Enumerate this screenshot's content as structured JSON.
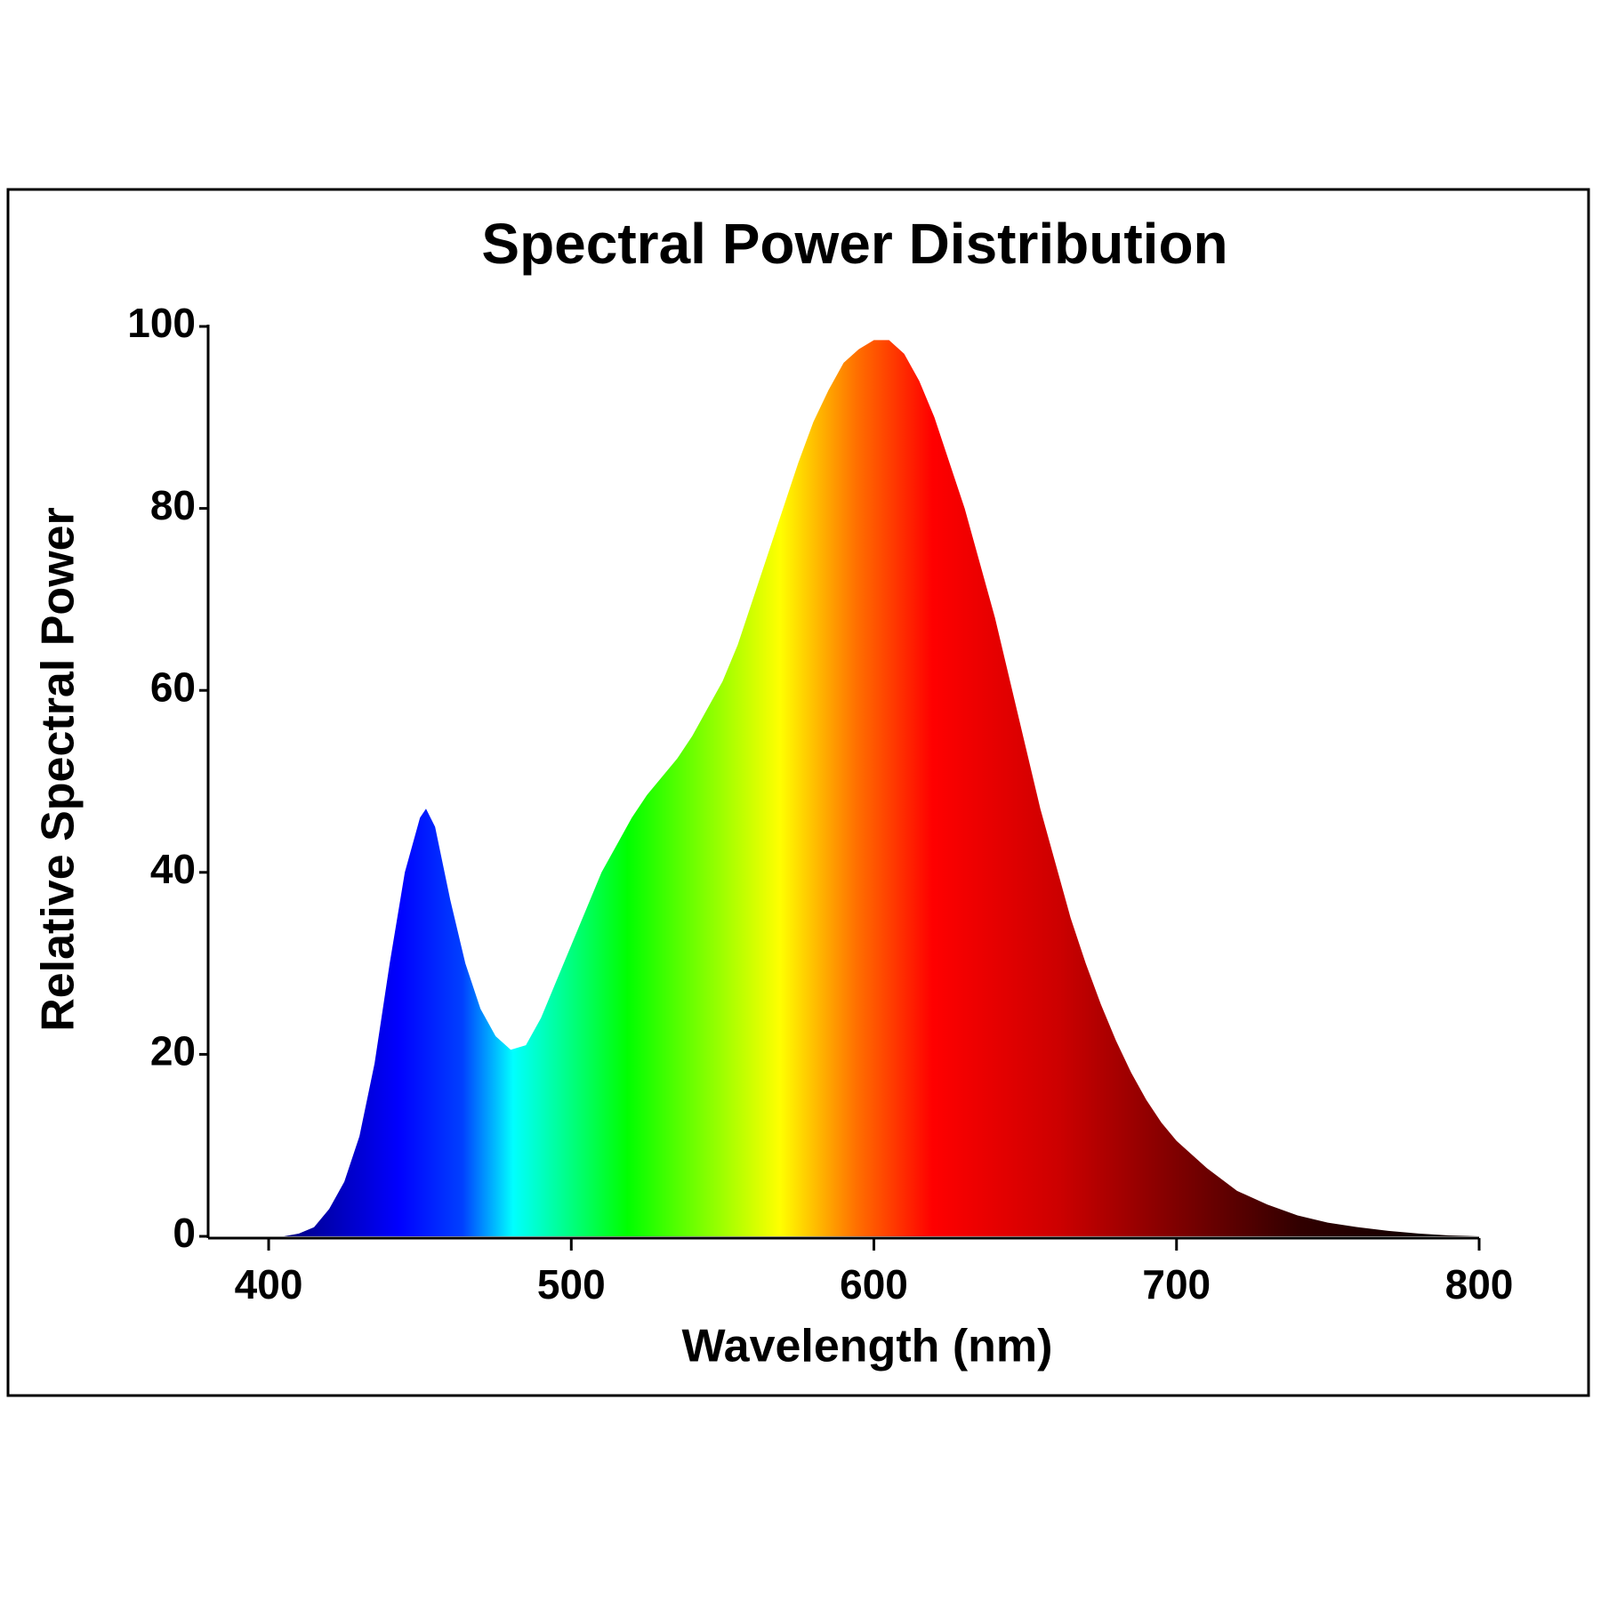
{
  "chart_data": {
    "type": "area",
    "title": "Spectral Power Distribution",
    "xlabel": "Wavelength (nm)",
    "ylabel": "Relative Spectral Power",
    "x": [
      380,
      390,
      400,
      405,
      410,
      415,
      420,
      425,
      430,
      435,
      440,
      445,
      450,
      452,
      455,
      460,
      465,
      470,
      475,
      480,
      485,
      490,
      495,
      500,
      505,
      510,
      515,
      520,
      525,
      530,
      535,
      540,
      545,
      550,
      555,
      560,
      565,
      570,
      575,
      580,
      585,
      590,
      595,
      600,
      605,
      610,
      615,
      620,
      625,
      630,
      635,
      640,
      645,
      650,
      655,
      660,
      665,
      670,
      675,
      680,
      685,
      690,
      695,
      700,
      710,
      720,
      730,
      740,
      750,
      760,
      770,
      780,
      790,
      800
    ],
    "values": [
      0,
      0,
      0,
      0,
      0.3,
      1,
      3,
      6,
      11,
      19,
      30,
      40,
      46,
      47,
      45,
      37,
      30,
      25,
      22,
      20.5,
      21,
      24,
      28,
      32,
      36,
      40,
      43,
      46,
      48.5,
      50.5,
      52.5,
      55,
      58,
      61,
      65,
      70,
      75,
      80,
      85,
      89.5,
      93,
      96,
      97.5,
      98.5,
      98.5,
      97,
      94,
      90,
      85,
      80,
      74,
      68,
      61,
      54,
      47,
      41,
      35,
      30,
      25.5,
      21.5,
      18,
      15,
      12.5,
      10.5,
      7.5,
      5,
      3.5,
      2.3,
      1.5,
      1,
      0.6,
      0.3,
      0.1,
      0
    ],
    "xlim": [
      380,
      800
    ],
    "ylim": [
      0,
      100
    ],
    "xticks": [
      400,
      500,
      600,
      700,
      800
    ],
    "yticks": [
      0,
      20,
      40,
      60,
      80,
      100
    ],
    "grid": false
  }
}
